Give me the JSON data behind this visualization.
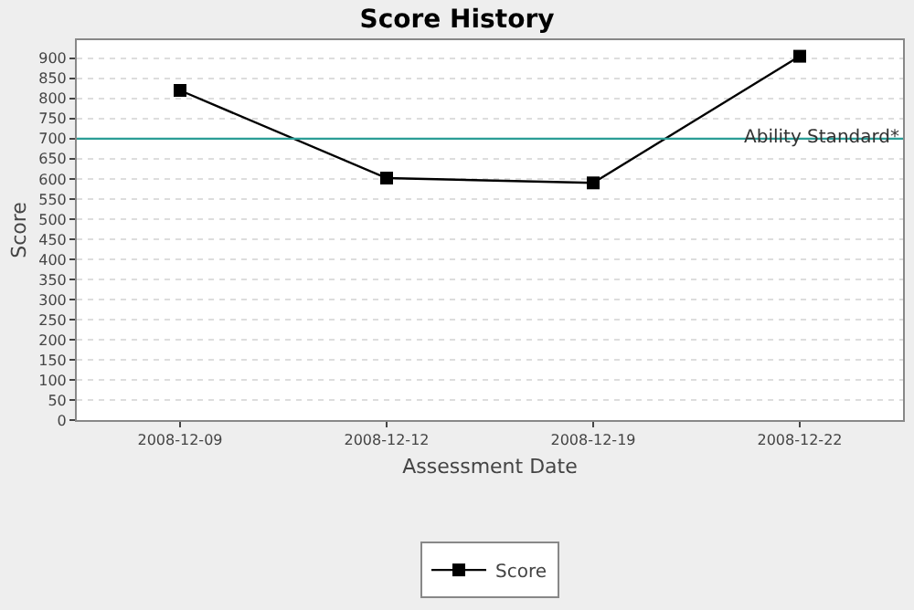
{
  "chart_data": {
    "type": "line",
    "title": "Score History",
    "xlabel": "Assessment Date",
    "ylabel": "Score",
    "categories": [
      "2008-12-09",
      "2008-12-12",
      "2008-12-19",
      "2008-12-22"
    ],
    "series": [
      {
        "name": "Score",
        "color": "#000000",
        "values": [
          820,
          602,
          590,
          905
        ]
      }
    ],
    "ylim": [
      0,
      945
    ],
    "yticks": [
      0,
      50,
      100,
      150,
      200,
      250,
      300,
      350,
      400,
      450,
      500,
      550,
      600,
      650,
      700,
      750,
      800,
      850,
      900
    ],
    "grid": "y",
    "legend": "bottom",
    "marker": "square",
    "line_style": "solid",
    "ref_lines": [
      {
        "axis": "y",
        "value": 700,
        "label": "Ability Standard*",
        "color": "#2a9d96"
      }
    ]
  }
}
